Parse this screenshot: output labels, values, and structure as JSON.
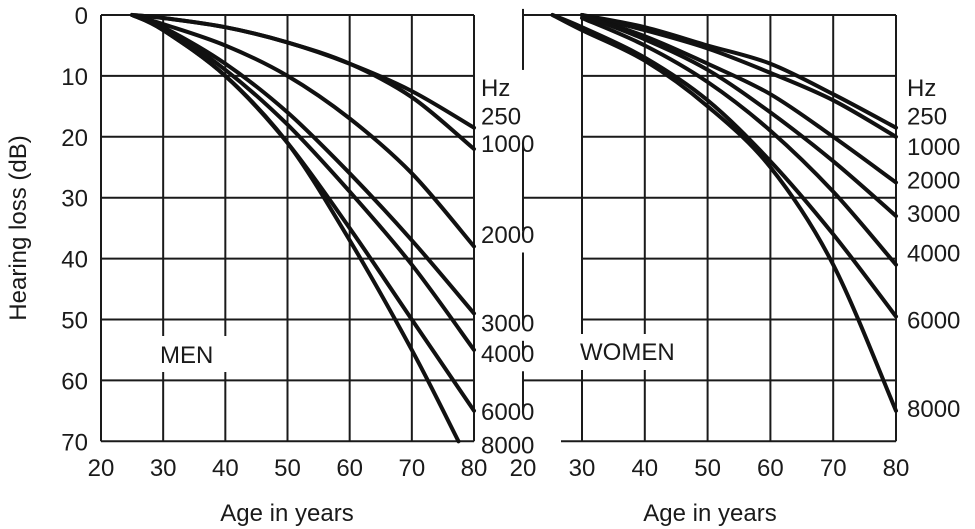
{
  "chart_data": {
    "type": "line",
    "title": "",
    "ylabel": "Hearing loss (dB)",
    "xlabel": "Age in years",
    "y_inverted": true,
    "ylim": [
      0,
      70
    ],
    "xlim": [
      20,
      80
    ],
    "y_ticks": [
      "0",
      "10",
      "20",
      "30",
      "40",
      "50",
      "60",
      "70"
    ],
    "x_ticks": [
      "20",
      "30",
      "40",
      "50",
      "60",
      "70",
      "80"
    ],
    "grid": true,
    "legend_unit": "Hz",
    "panels": [
      {
        "name": "MEN",
        "series": [
          {
            "name": "250",
            "x": [
              25,
              30,
              40,
              50,
              60,
              70,
              80
            ],
            "values": [
              0,
              0.5,
              2,
              4.5,
              8,
              12.5,
              18.5
            ]
          },
          {
            "name": "1000",
            "x": [
              25,
              30,
              40,
              50,
              60,
              70,
              80
            ],
            "values": [
              0,
              0.5,
              2,
              4.5,
              8,
              13.5,
              22
            ]
          },
          {
            "name": "2000",
            "x": [
              25,
              30,
              40,
              50,
              60,
              70,
              80
            ],
            "values": [
              0,
              1.5,
              5,
              10,
              17,
              26,
              38
            ]
          },
          {
            "name": "3000",
            "x": [
              25,
              30,
              40,
              50,
              60,
              70,
              80
            ],
            "values": [
              0,
              2,
              8,
              16,
              26,
              37,
              49
            ]
          },
          {
            "name": "4000",
            "x": [
              25,
              30,
              40,
              50,
              60,
              70,
              80
            ],
            "values": [
              0,
              2,
              9,
              18,
              29,
              41,
              55
            ]
          },
          {
            "name": "6000",
            "x": [
              25,
              30,
              40,
              50,
              60,
              70,
              80
            ],
            "values": [
              0,
              2.5,
              10,
              21,
              35,
              50,
              65
            ]
          },
          {
            "name": "8000",
            "x": [
              25,
              30,
              40,
              50,
              60,
              70,
              77.5
            ],
            "values": [
              0,
              2.5,
              10,
              21,
              37,
              55,
              70
            ]
          }
        ],
        "label_db": {
          "250": 16.5,
          "1000": 21,
          "2000": 36,
          "3000": 50.5,
          "4000": 55.5,
          "6000": 65,
          "8000": 70.5
        }
      },
      {
        "name": "WOMEN",
        "series": [
          {
            "name": "250",
            "x": [
              30,
              40,
              50,
              60,
              70,
              80
            ],
            "values": [
              0,
              2,
              5,
              8,
              13,
              18.5
            ]
          },
          {
            "name": "1000",
            "x": [
              30,
              40,
              50,
              60,
              70,
              80
            ],
            "values": [
              0,
              2.5,
              5.5,
              9.5,
              14,
              20
            ]
          },
          {
            "name": "2000",
            "x": [
              30,
              40,
              50,
              60,
              70,
              80
            ],
            "values": [
              0,
              3.5,
              8,
              13,
              20,
              27.5
            ]
          },
          {
            "name": "3000",
            "x": [
              30,
              40,
              50,
              60,
              70,
              80
            ],
            "values": [
              0,
              4,
              9,
              16,
              24,
              33
            ]
          },
          {
            "name": "4000",
            "x": [
              30,
              40,
              50,
              60,
              70,
              80
            ],
            "values": [
              0.5,
              5,
              11,
              19,
              29,
              41
            ]
          },
          {
            "name": "6000",
            "x": [
              25,
              30,
              40,
              50,
              60,
              70,
              80
            ],
            "values": [
              0,
              2,
              7,
              14,
              24,
              36,
              49.5
            ]
          },
          {
            "name": "8000",
            "x": [
              25,
              30,
              40,
              50,
              60,
              70,
              80
            ],
            "values": [
              0,
              2.5,
              7.5,
              15,
              25,
              41,
              65
            ]
          }
        ],
        "label_db": {
          "250": 16.5,
          "1000": 21.5,
          "2000": 27,
          "3000": 32.5,
          "4000": 39,
          "6000": 50,
          "8000": 64.5
        }
      }
    ]
  },
  "labels": {
    "y_axis": "Hearing loss (dB)",
    "x_axis_left": "Age in years",
    "x_axis_right": "Age in years",
    "men": "MEN",
    "women": "WOMEN",
    "hz": "Hz"
  }
}
